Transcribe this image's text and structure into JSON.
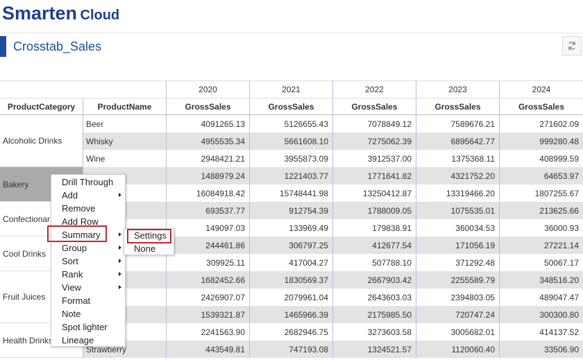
{
  "header": {
    "logo": "Smarten",
    "logo_suffix": "Cloud",
    "title": "Crosstab_Sales"
  },
  "table": {
    "dimension_headers": [
      "ProductCategory",
      "ProductName"
    ],
    "years": [
      "2020",
      "2021",
      "2022",
      "2023",
      "2024"
    ],
    "measure": "GrossSales",
    "groups": [
      {
        "label": "Alcoholic Drinks",
        "rows": [
          {
            "product": "Beer",
            "values": [
              "4091265.13",
              "5126655.43",
              "7078849.12",
              "7589676.21",
              "271602.09"
            ]
          },
          {
            "product": "Whisky",
            "values": [
              "4955535.34",
              "5661608.10",
              "7275062.39",
              "6895642.77",
              "999280.48"
            ]
          },
          {
            "product": "Wine",
            "values": [
              "2948421.21",
              "3955873.09",
              "3912537.00",
              "1375368.11",
              "408999.59"
            ]
          }
        ]
      },
      {
        "label": "Bakery",
        "rows": [
          {
            "product": null,
            "values": [
              "1488979.24",
              "1221403.77",
              "1771641.82",
              "4321752.20",
              "64653.97"
            ]
          },
          {
            "product": null,
            "values": [
              "16084918.42",
              "15748441.98",
              "13250412.87",
              "13319466.20",
              "1807255.67"
            ]
          }
        ]
      },
      {
        "label": "Confectionar",
        "rows": [
          {
            "product": null,
            "values": [
              "693537.77",
              "912754.39",
              "1788009.05",
              "1075535.01",
              "213625.66"
            ]
          },
          {
            "product": null,
            "values": [
              "149097.03",
              "133969.49",
              "179838.91",
              "360034.53",
              "36000.93"
            ]
          }
        ]
      },
      {
        "label": "Cool Drinks",
        "rows": [
          {
            "product": null,
            "values": [
              "244461.86",
              "306797.25",
              "412677.54",
              "171056.19",
              "27221.14"
            ]
          },
          {
            "product": null,
            "values": [
              "309925.11",
              "417004.27",
              "507788.10",
              "371292.48",
              "50067.17"
            ]
          }
        ]
      },
      {
        "label": "Fruit Juices",
        "rows": [
          {
            "product": null,
            "values": [
              "1682452.66",
              "1830569.37",
              "2667903.42",
              "2255589.79",
              "348516.20"
            ]
          },
          {
            "product": null,
            "values": [
              "2426907.07",
              "2079961.04",
              "2643603.03",
              "2394803.05",
              "489047.47"
            ]
          },
          {
            "product": null,
            "values": [
              "1539321.87",
              "1465966.39",
              "2175985.50",
              "720747.24",
              "300300.80"
            ]
          }
        ]
      },
      {
        "label": "Health Drinks",
        "rows": [
          {
            "product": null,
            "values": [
              "2241563.90",
              "2682946.75",
              "3273603.58",
              "3005682.01",
              "414137.52"
            ]
          },
          {
            "product": "Strawberry",
            "values": [
              "443549.81",
              "747193.08",
              "1324521.57",
              "1120060.40",
              "33506.90"
            ]
          }
        ]
      }
    ]
  },
  "context_menu": {
    "items": [
      {
        "label": "Drill Through",
        "submenu": false
      },
      {
        "label": "Add",
        "submenu": true
      },
      {
        "label": "Remove",
        "submenu": false
      },
      {
        "label": "Add Row",
        "submenu": false
      },
      {
        "label": "Summary",
        "submenu": true,
        "highlighted": true
      },
      {
        "label": "Group",
        "submenu": true
      },
      {
        "label": "Sort",
        "submenu": true
      },
      {
        "label": "Rank",
        "submenu": true
      },
      {
        "label": "View",
        "submenu": true
      },
      {
        "label": "Format",
        "submenu": false
      },
      {
        "label": "Note",
        "submenu": false
      },
      {
        "label": "Spot lighter",
        "submenu": false
      },
      {
        "label": "Lineage",
        "submenu": false
      }
    ],
    "submenu": {
      "items": [
        {
          "label": "Settings",
          "highlighted": true
        },
        {
          "label": "None"
        }
      ]
    }
  }
}
